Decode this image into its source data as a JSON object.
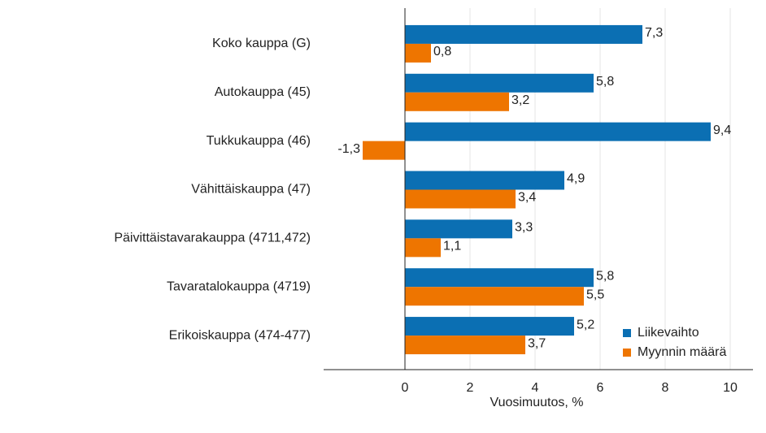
{
  "chart_data": {
    "type": "bar",
    "orientation": "horizontal",
    "categories": [
      "Koko kauppa (G)",
      "Autokauppa (45)",
      "Tukkukauppa (46)",
      "Vähittäiskauppa (47)",
      "Päivittäistavarakauppa (4711,472)",
      "Tavaratalokauppa (4719)",
      "Erikoiskauppa (474-477)"
    ],
    "series": [
      {
        "name": "Liikevaihto",
        "color": "#0b6fb3",
        "values": [
          7.3,
          5.8,
          9.4,
          4.9,
          3.3,
          5.8,
          5.2
        ],
        "value_labels": [
          "7,3",
          "5,8",
          "9,4",
          "4,9",
          "3,3",
          "5,8",
          "5,2"
        ]
      },
      {
        "name": "Myynnin määrä",
        "color": "#ee7500",
        "values": [
          0.8,
          3.2,
          -1.3,
          3.4,
          1.1,
          5.5,
          3.7
        ],
        "value_labels": [
          "0,8",
          "3,2",
          "-1,3",
          "3,4",
          "1,1",
          "5,5",
          "3,7"
        ]
      }
    ],
    "xlabel": "Vuosimuutos, %",
    "xlim": [
      -2.5,
      10.7
    ],
    "xticks": [
      0,
      2,
      4,
      6,
      8,
      10
    ],
    "grid": true,
    "legend": "lower right"
  }
}
